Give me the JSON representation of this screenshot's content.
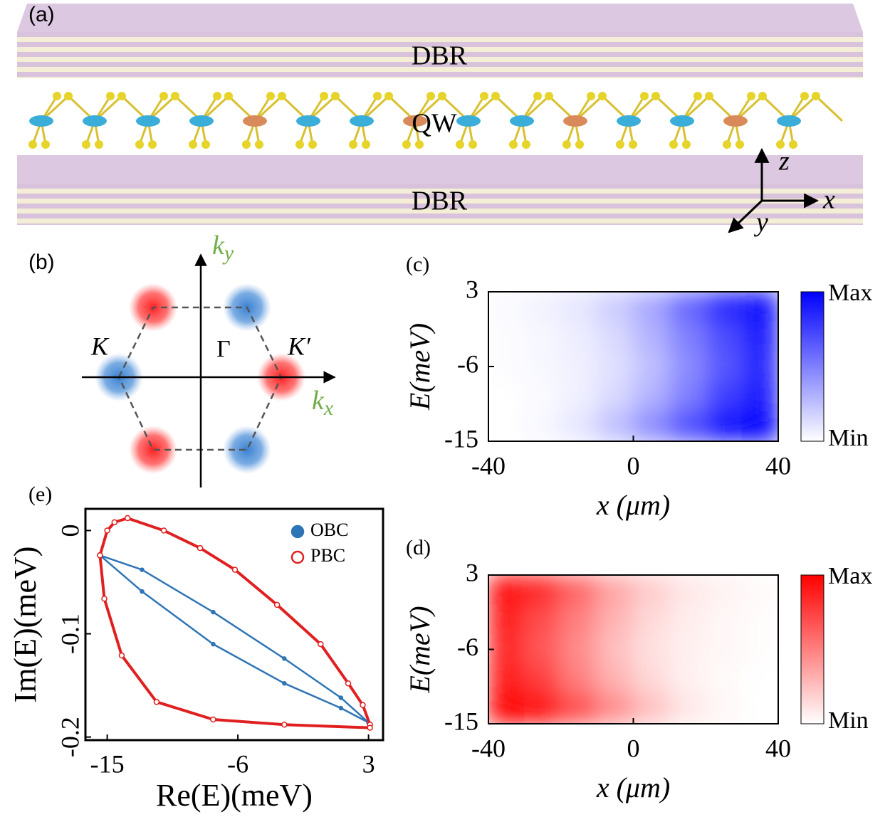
{
  "diagram_a": {
    "panel_label": "(a)",
    "top_layer": "DBR",
    "middle_layer": "QW",
    "bottom_layer": "DBR",
    "axis_z": "z",
    "axis_x": "x",
    "axis_y": "y"
  },
  "diagram_b": {
    "panel_label": "(b)",
    "valley_K": "K",
    "center": "Γ",
    "valley_K_prime": "K′",
    "axis_ky": {
      "base": "k",
      "sub": "y"
    },
    "axis_kx": {
      "base": "k",
      "sub": "x"
    }
  },
  "chart_data": [
    {
      "type": "heatmap",
      "panel_label": "(c)",
      "color": "#0000ff",
      "xlabel": "x (μm)",
      "ylabel": "E(meV)",
      "xlim": [
        -40,
        40
      ],
      "ylim": [
        -15,
        3
      ],
      "xticks": [
        -40,
        0,
        40
      ],
      "yticks": [
        3,
        -6,
        -15
      ],
      "colorbar": {
        "max_label": "Max",
        "min_label": "Min"
      },
      "z": [
        [
          0.02,
          0.05,
          0.1,
          0.2,
          0.35,
          0.6,
          0.85,
          0.95
        ],
        [
          0.01,
          0.03,
          0.07,
          0.15,
          0.3,
          0.5,
          0.7,
          0.9
        ],
        [
          0.01,
          0.03,
          0.06,
          0.12,
          0.25,
          0.45,
          0.65,
          0.85
        ],
        [
          0.0,
          0.02,
          0.06,
          0.15,
          0.3,
          0.5,
          0.75,
          0.9
        ],
        [
          0.0,
          0.03,
          0.1,
          0.25,
          0.45,
          0.7,
          0.95,
          1.0
        ]
      ]
    },
    {
      "type": "heatmap",
      "panel_label": "(d)",
      "color": "#ff0000",
      "xlabel": "x (μm)",
      "ylabel": "E(meV)",
      "xlim": [
        -40,
        40
      ],
      "ylim": [
        -15,
        3
      ],
      "xticks": [
        -40,
        0,
        40
      ],
      "yticks": [
        3,
        -6,
        -15
      ],
      "colorbar": {
        "max_label": "Max",
        "min_label": "Min"
      },
      "z": [
        [
          0.95,
          0.85,
          0.6,
          0.35,
          0.2,
          0.1,
          0.05,
          0.02
        ],
        [
          0.9,
          0.7,
          0.5,
          0.3,
          0.15,
          0.07,
          0.03,
          0.01
        ],
        [
          0.85,
          0.65,
          0.45,
          0.25,
          0.12,
          0.06,
          0.03,
          0.01
        ],
        [
          0.9,
          0.75,
          0.5,
          0.3,
          0.15,
          0.06,
          0.02,
          0.0
        ],
        [
          1.0,
          0.95,
          0.7,
          0.45,
          0.25,
          0.1,
          0.03,
          0.0
        ]
      ]
    },
    {
      "type": "scatter",
      "panel_label": "(e)",
      "xlabel": "Re(E)(meV)",
      "ylabel": "Im(E)(meV)",
      "xlim": [
        -16.5,
        4
      ],
      "ylim": [
        -0.203,
        0.021
      ],
      "xticks": [
        -15,
        -6,
        3
      ],
      "yticks": [
        0,
        -0.1,
        -0.2
      ],
      "legend": "upper right",
      "series": [
        {
          "name": "OBC",
          "color": "#2e75b6",
          "marker": "filled",
          "x": [
            -15.5,
            -12.6,
            -7.7,
            -2.8,
            1.1,
            3.0,
            1.1,
            -2.8,
            -7.7,
            -12.6,
            -15.5
          ],
          "y": [
            -0.024,
            -0.038,
            -0.079,
            -0.124,
            -0.162,
            -0.186,
            -0.172,
            -0.148,
            -0.11,
            -0.059,
            -0.024
          ]
        },
        {
          "name": "PBC",
          "color": "#e02020",
          "marker": "hollow",
          "x": [
            -15.5,
            -15.0,
            -14.5,
            -13.6,
            -11.1,
            -8.6,
            -6.2,
            -3.3,
            -0.3,
            1.6,
            2.6,
            3.1,
            3.1,
            -2.8,
            -7.7,
            -11.6,
            -14.0,
            -15.2,
            -15.5
          ],
          "y": [
            -0.024,
            0.0,
            0.008,
            0.012,
            0.0,
            -0.017,
            -0.038,
            -0.072,
            -0.11,
            -0.148,
            -0.169,
            -0.188,
            -0.191,
            -0.188,
            -0.183,
            -0.166,
            -0.121,
            -0.066,
            -0.024
          ]
        }
      ]
    }
  ]
}
